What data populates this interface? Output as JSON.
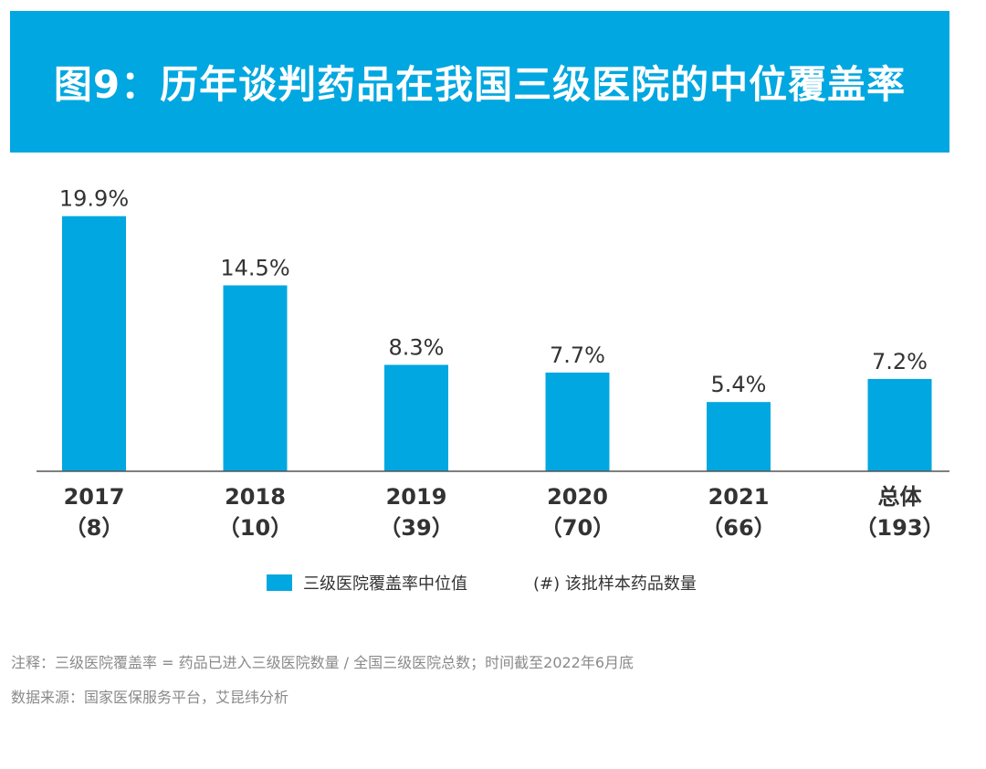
{
  "header": {
    "title": "图9：历年谈判药品在我国三级医院的中位覆盖率"
  },
  "chart_data": {
    "type": "bar",
    "categories": [
      "2017",
      "2018",
      "2019",
      "2020",
      "2021",
      "总体"
    ],
    "sample_counts": [
      "（8）",
      "（10）",
      "（39）",
      "（70）",
      "（66）",
      "（193）"
    ],
    "series": [
      {
        "name": "三级医院覆盖率中位值",
        "values": [
          19.9,
          14.5,
          8.3,
          7.7,
          5.4,
          7.2
        ],
        "labels": [
          "19.9%",
          "14.5%",
          "8.3%",
          "7.7%",
          "5.4%",
          "7.2%"
        ]
      }
    ],
    "ylim": [
      0,
      21.8
    ],
    "grid": false,
    "bar_color": "#00a7e0",
    "legend_position": "bottom"
  },
  "legend": {
    "series_label": "三级医院覆盖率中位值",
    "count_note": "(#) 该批样本药品数量"
  },
  "notes": {
    "note": "注释：三级医院覆盖率 = 药品已进入三级医院数量 / 全国三级医院总数；时间截至2022年6月底",
    "source": "数据来源：国家医保服务平台，艾昆纬分析"
  },
  "colors": {
    "accent": "#00a7e0",
    "text": "#333333",
    "muted": "#8a8a8a"
  }
}
